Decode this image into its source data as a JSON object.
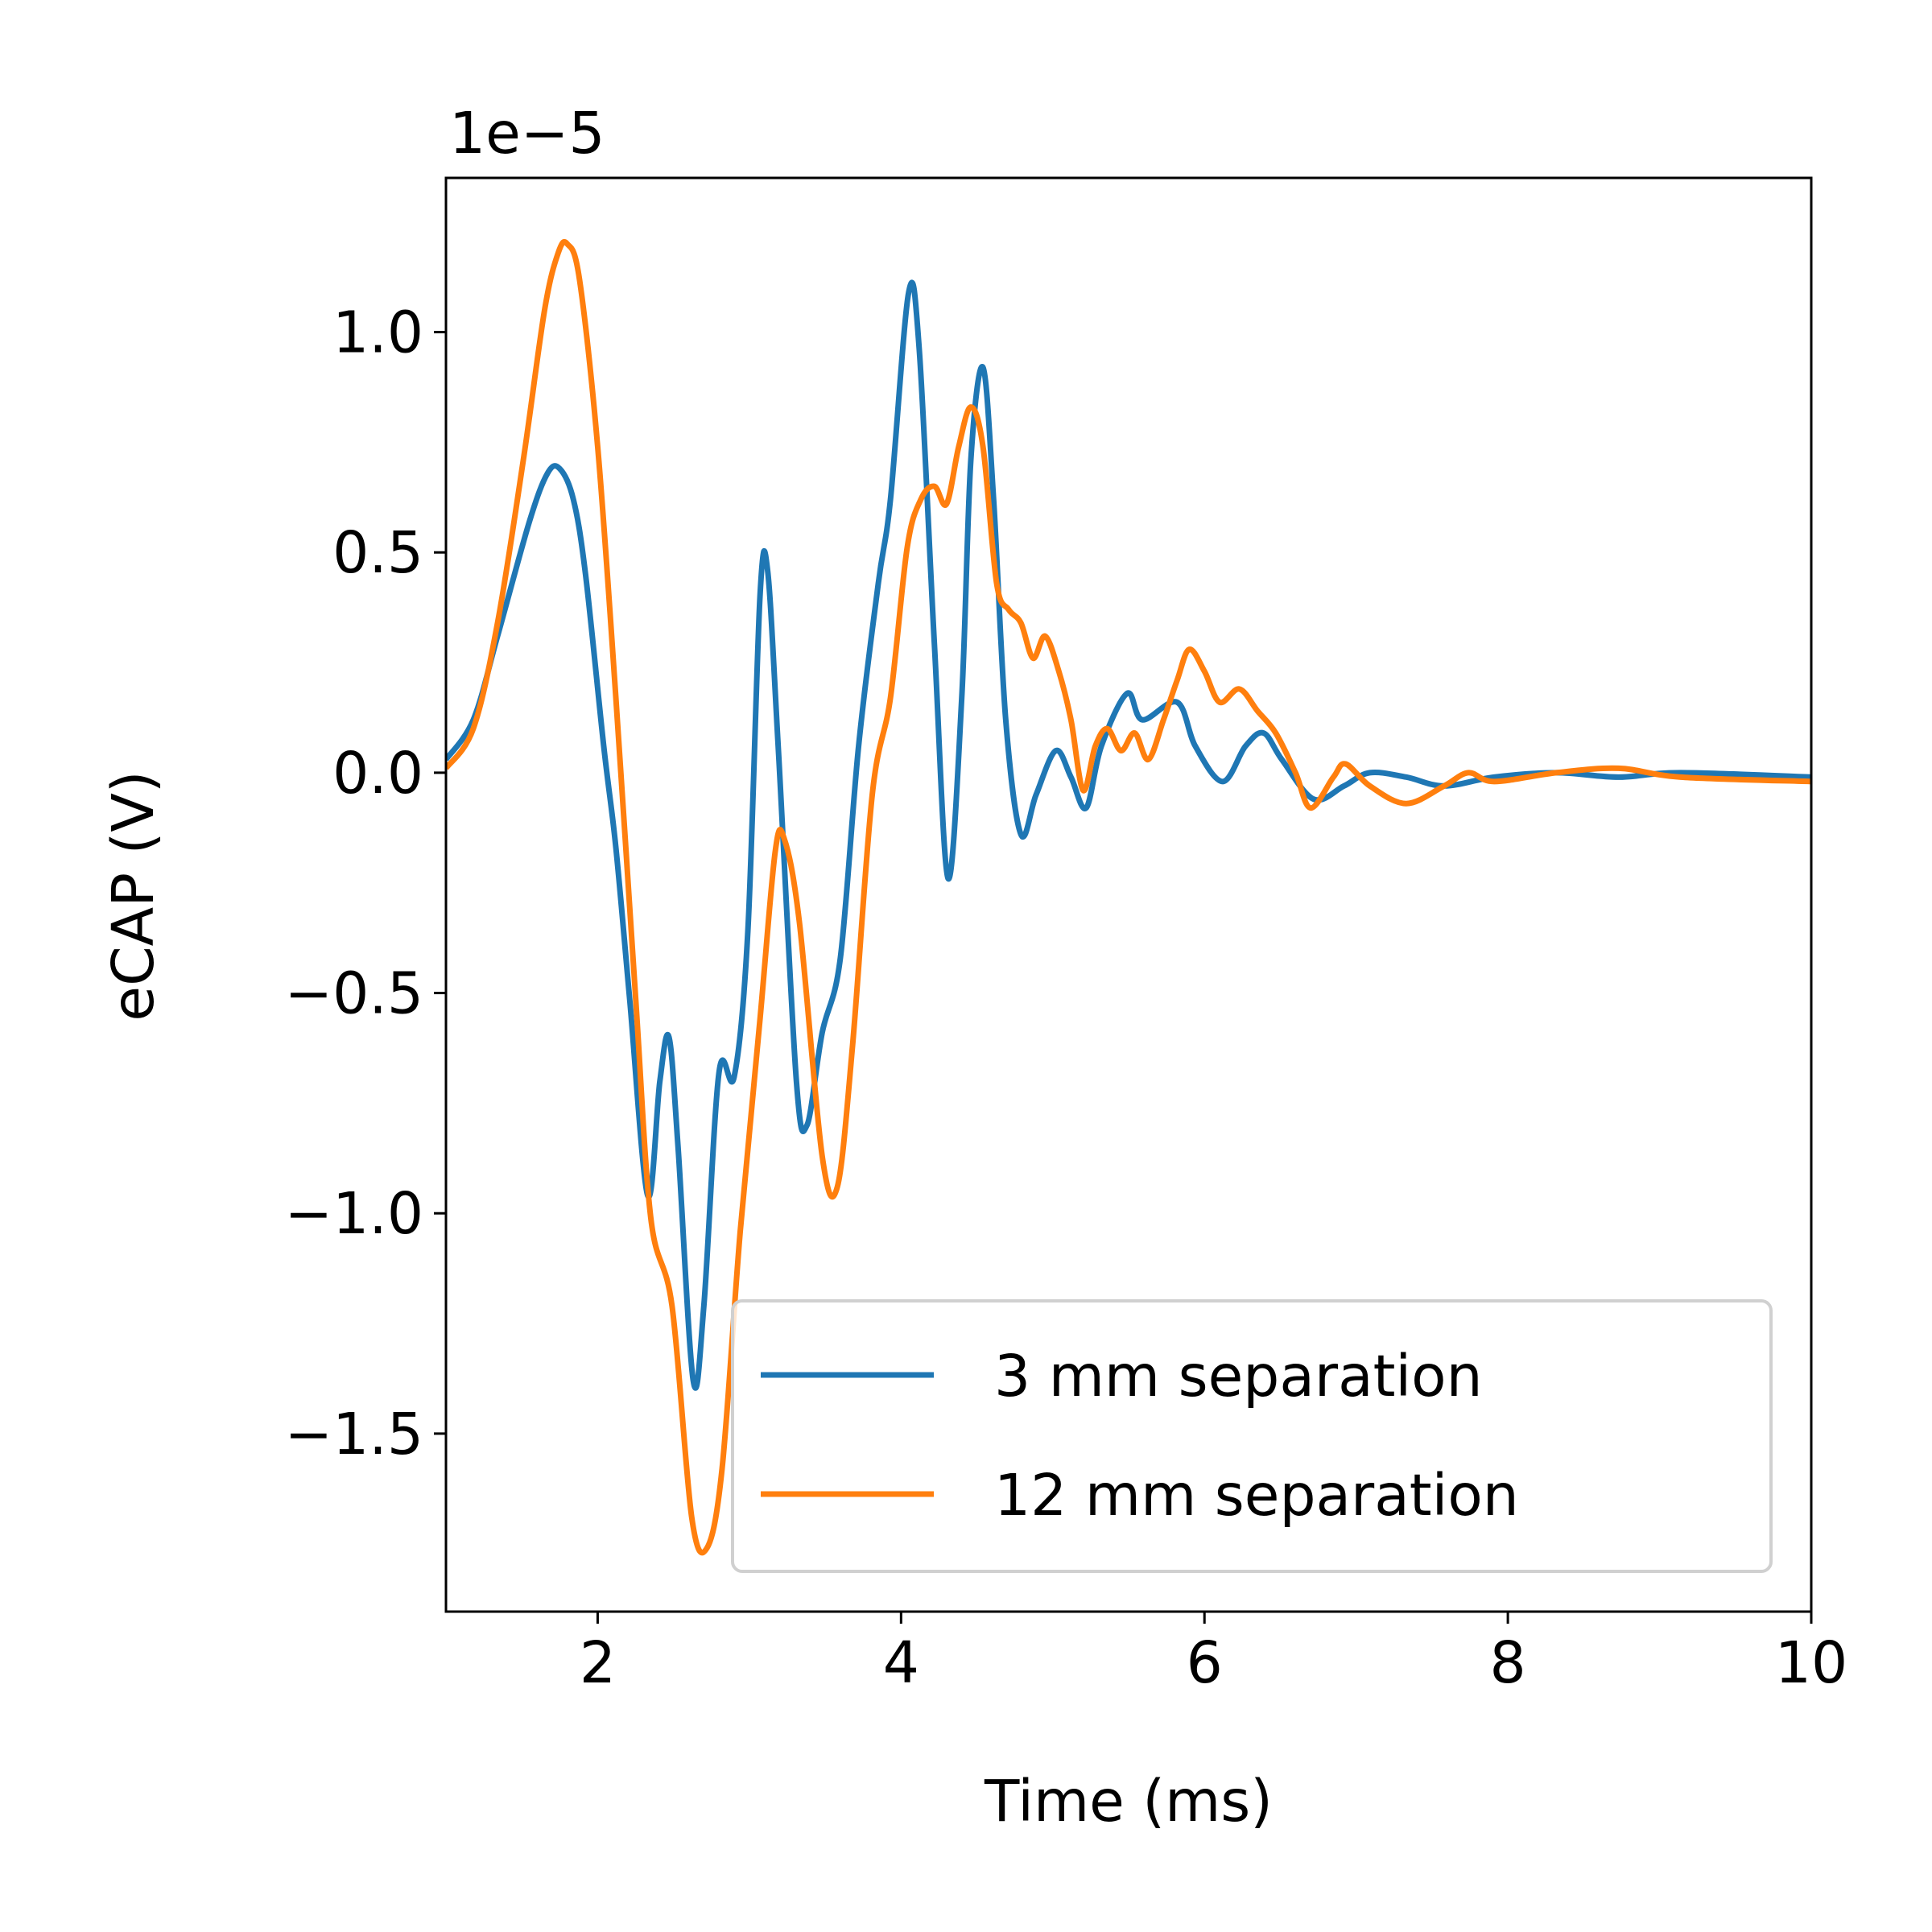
{
  "chart_data": {
    "type": "line",
    "x_label": "Time (ms)",
    "y_label": "eCAP (V)",
    "y_offset_label": "1e−5",
    "xlim": [
      1,
      10
    ],
    "ylim": [
      -1.904,
      1.35
    ],
    "xticks": [
      2,
      4,
      6,
      8,
      10
    ],
    "yticks": [
      {
        "value": -1.5,
        "label": "−1.5"
      },
      {
        "value": -1,
        "label": "−1.0"
      },
      {
        "value": -0.5,
        "label": "−0.5"
      },
      {
        "value": 0,
        "label": "0.0"
      },
      {
        "value": 0.5,
        "label": "0.5"
      },
      {
        "value": 1,
        "label": "1.0"
      }
    ],
    "grid": false,
    "legend": "lower right",
    "series": [
      {
        "name": "3 mm separation",
        "color": "#1f77b4",
        "x": [
          1.0,
          1.18,
          1.34,
          1.55,
          1.67,
          1.75,
          1.84,
          1.92,
          2.04,
          2.12,
          2.21,
          2.33,
          2.41,
          2.47,
          2.53,
          2.63,
          2.7,
          2.8,
          2.9,
          2.99,
          3.07,
          3.12,
          3.19,
          3.31,
          3.38,
          3.48,
          3.6,
          3.72,
          3.85,
          3.93,
          4.05,
          4.12,
          4.22,
          4.31,
          4.4,
          4.46,
          4.54,
          4.61,
          4.69,
          4.79,
          4.89,
          5.02,
          5.12,
          5.22,
          5.32,
          5.49,
          5.59,
          5.82,
          5.94,
          6.12,
          6.27,
          6.39,
          6.51,
          6.72,
          6.92,
          7.09,
          7.33,
          7.58,
          7.91,
          8.32,
          8.73,
          9.14,
          10.0
        ],
        "values": [
          0.03,
          0.12,
          0.31,
          0.57,
          0.68,
          0.69,
          0.62,
          0.45,
          0.06,
          -0.17,
          -0.51,
          -0.96,
          -0.7,
          -0.6,
          -0.85,
          -1.38,
          -1.21,
          -0.68,
          -0.69,
          -0.36,
          0.4,
          0.46,
          0.06,
          -0.7,
          -0.8,
          -0.59,
          -0.42,
          0.06,
          0.43,
          0.62,
          1.09,
          0.96,
          0.29,
          -0.24,
          0.17,
          0.71,
          0.92,
          0.62,
          0.12,
          -0.14,
          -0.05,
          0.05,
          -0.01,
          -0.08,
          0.06,
          0.18,
          0.12,
          0.16,
          0.06,
          -0.02,
          0.06,
          0.09,
          0.03,
          -0.06,
          -0.03,
          0.0,
          -0.01,
          -0.03,
          -0.01,
          0.0,
          -0.01,
          0.0,
          -0.01
        ]
      },
      {
        "name": "12 mm separation",
        "color": "#ff7f0e",
        "x": [
          1.0,
          1.18,
          1.34,
          1.51,
          1.65,
          1.74,
          1.8,
          1.88,
          2.0,
          2.12,
          2.25,
          2.35,
          2.49,
          2.62,
          2.72,
          2.82,
          2.94,
          3.07,
          3.17,
          3.23,
          3.33,
          3.48,
          3.58,
          3.68,
          3.81,
          3.93,
          4.04,
          4.13,
          4.22,
          4.3,
          4.38,
          4.46,
          4.54,
          4.63,
          4.71,
          4.79,
          4.87,
          4.95,
          5.04,
          5.12,
          5.2,
          5.28,
          5.36,
          5.45,
          5.54,
          5.63,
          5.73,
          5.82,
          5.9,
          6.0,
          6.1,
          6.23,
          6.35,
          6.47,
          6.6,
          6.7,
          6.85,
          6.93,
          7.09,
          7.33,
          7.58,
          7.74,
          7.91,
          8.32,
          8.73,
          9.14,
          10.0
        ],
        "values": [
          0.01,
          0.1,
          0.34,
          0.71,
          1.05,
          1.18,
          1.2,
          1.12,
          0.74,
          0.17,
          -0.51,
          -1.01,
          -1.21,
          -1.69,
          -1.76,
          -1.58,
          -1.04,
          -0.56,
          -0.18,
          -0.15,
          -0.34,
          -0.87,
          -0.94,
          -0.62,
          -0.05,
          0.17,
          0.51,
          0.62,
          0.65,
          0.61,
          0.74,
          0.83,
          0.74,
          0.43,
          0.37,
          0.34,
          0.26,
          0.31,
          0.23,
          0.12,
          -0.04,
          0.06,
          0.1,
          0.05,
          0.09,
          0.03,
          0.12,
          0.21,
          0.28,
          0.23,
          0.16,
          0.19,
          0.14,
          0.09,
          0.0,
          -0.08,
          -0.01,
          0.02,
          -0.03,
          -0.07,
          -0.03,
          0.0,
          -0.02,
          0.0,
          0.01,
          -0.01,
          -0.02
        ]
      }
    ]
  }
}
